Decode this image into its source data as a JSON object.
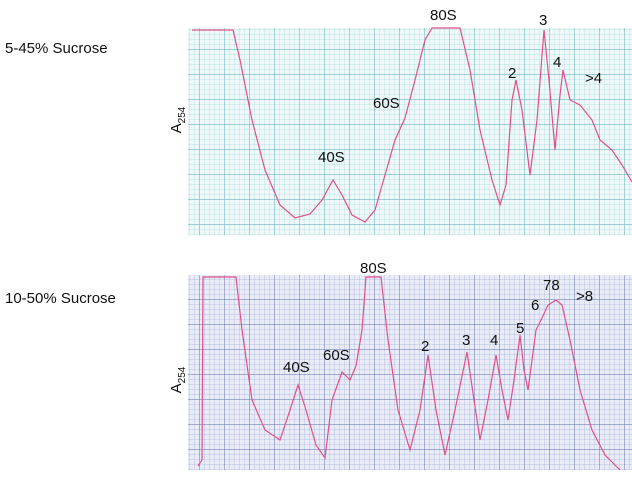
{
  "panels": [
    {
      "condition": "5-45% Sucrose",
      "y_label": {
        "main": "A",
        "sub": "254"
      },
      "peaks": [
        "40S",
        "60S",
        "80S",
        "2",
        "3",
        "4",
        ">4"
      ]
    },
    {
      "condition": "10-50% Sucrose",
      "y_label": {
        "main": "A",
        "sub": "254"
      },
      "peaks": [
        "40S",
        "60S",
        "80S",
        "2",
        "3",
        "4",
        "5",
        "6",
        "78",
        ">8"
      ]
    }
  ]
}
